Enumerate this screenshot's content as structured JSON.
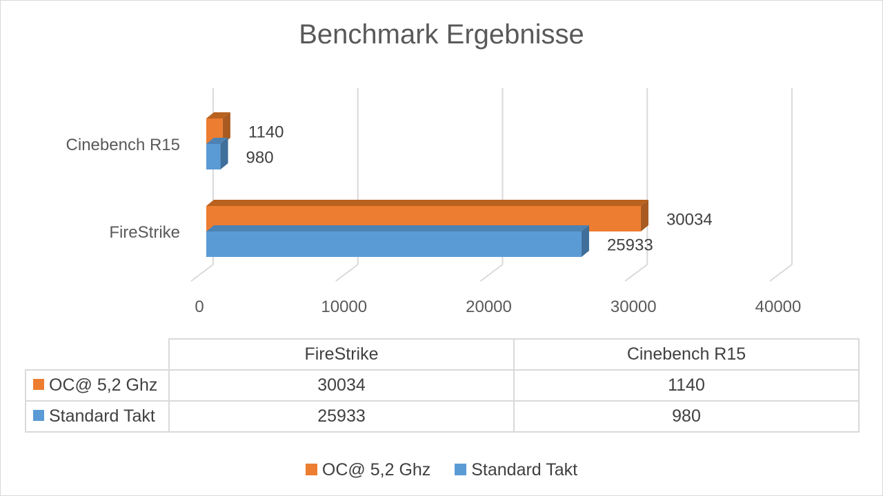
{
  "chart_data": {
    "type": "bar",
    "orientation": "horizontal",
    "style": "3d",
    "title": "Benchmark Ergebnisse",
    "categories": [
      "FireStrike",
      "Cinebench R15"
    ],
    "series": [
      {
        "name": "OC@ 5,2 Ghz",
        "color": "#ed7d31",
        "values": [
          30034,
          1140
        ]
      },
      {
        "name": "Standard Takt",
        "color": "#5b9bd5",
        "values": [
          25933,
          980
        ]
      }
    ],
    "xlim": [
      0,
      40000
    ],
    "x_ticks": [
      "0",
      "10000",
      "20000",
      "30000",
      "40000"
    ],
    "grid": true,
    "legend_position": "bottom",
    "data_table": true
  }
}
